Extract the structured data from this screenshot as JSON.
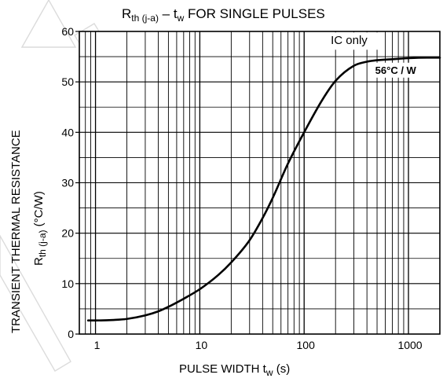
{
  "chart_data": {
    "type": "line",
    "title": "Rth (j-a) – tw FOR SINGLE PULSES",
    "title_parts": {
      "main": "R",
      "sub1": "th (j-a)",
      "dash": " – t",
      "sub2": "w",
      "rest": " FOR SINGLE PULSES"
    },
    "xlabel": "PULSE WIDTH tw (s)",
    "xlabel_parts": {
      "main": "PULSE WIDTH   t",
      "sub": "w",
      "unit": "   (s)"
    },
    "ylabel_line1": "TRANSIENT THERMAL RESISTANCE",
    "ylabel_line2": "Rth (j-a) (°C/W)",
    "ylabel_line2_parts": {
      "main": "R",
      "sub": "th (j-a)",
      "unit": "   (°C/W)"
    },
    "x_scale": "log",
    "xlim": [
      0.7,
      2000
    ],
    "ylim": [
      0,
      60
    ],
    "grid": true,
    "x_ticks": [
      {
        "value": 1,
        "label": "1"
      },
      {
        "value": 10,
        "label": "10"
      },
      {
        "value": 100,
        "label": "100"
      },
      {
        "value": 1000,
        "label": "1000"
      }
    ],
    "y_ticks": [
      {
        "value": 0,
        "label": "0"
      },
      {
        "value": 10,
        "label": "10"
      },
      {
        "value": 20,
        "label": "20"
      },
      {
        "value": 30,
        "label": "30"
      },
      {
        "value": 40,
        "label": "40"
      },
      {
        "value": 50,
        "label": "50"
      },
      {
        "value": 60,
        "label": "60"
      }
    ],
    "series": [
      {
        "name": "IC only",
        "x": [
          0.85,
          1,
          1.5,
          2,
          3,
          4,
          5,
          7,
          10,
          15,
          20,
          30,
          40,
          50,
          70,
          100,
          150,
          200,
          300,
          400,
          500,
          700,
          1000,
          1500,
          2000
        ],
        "y": [
          2.7,
          2.7,
          2.8,
          3.0,
          3.7,
          4.5,
          5.4,
          7.0,
          8.9,
          11.7,
          14.2,
          18.6,
          23.0,
          27.0,
          33.8,
          40.0,
          46.5,
          50.2,
          53.2,
          54.0,
          54.3,
          54.5,
          54.7,
          54.8,
          54.8
        ]
      }
    ],
    "annotations": {
      "series_label": "IC only",
      "value_label": "56°C / W"
    }
  }
}
